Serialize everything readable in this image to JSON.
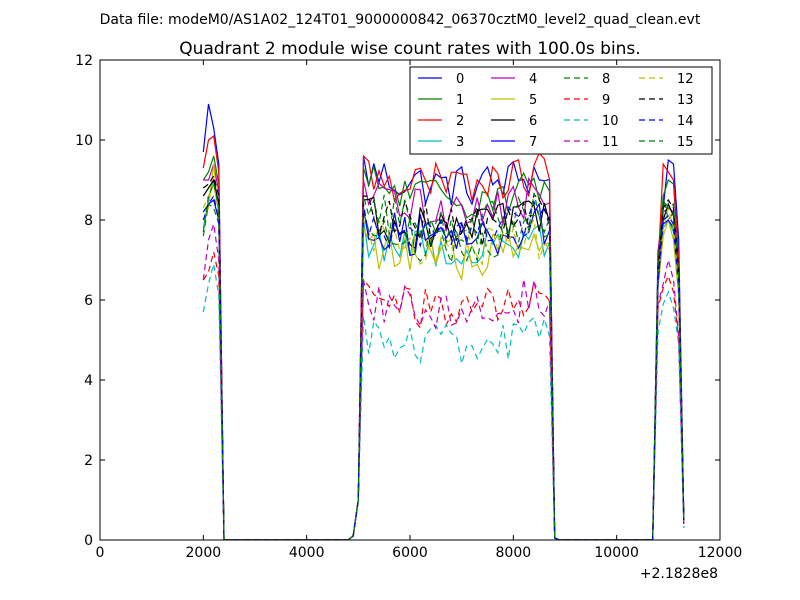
{
  "header": {
    "data_file": "Data file: modeM0/AS1A02_124T01_9000000842_06370cztM0_level2_quad_clean.evt"
  },
  "chart_data": {
    "type": "line",
    "title": "Quadrant 2 module wise count rates with 100.0s bins.",
    "xlabel": "",
    "ylabel": "",
    "xlim": [
      0,
      12000
    ],
    "ylim": [
      0,
      12
    ],
    "x_offset_label": "+2.1828e8",
    "x_ticks": [
      0,
      2000,
      4000,
      6000,
      8000,
      10000,
      12000
    ],
    "x_tick_labels": [
      "0",
      "2000",
      "4000",
      "6000",
      "8000",
      "10000",
      "12000"
    ],
    "y_ticks": [
      0,
      2,
      4,
      6,
      8,
      10,
      12
    ],
    "y_tick_labels": [
      "0",
      "2",
      "4",
      "6",
      "8",
      "10",
      "12"
    ],
    "grid": false,
    "legend_position": "top-right",
    "segments": [
      {
        "x_start": 2000,
        "n_points": 4,
        "pad_before": []
      },
      {
        "x_start": 2400,
        "n_points": 25,
        "pad_before": [],
        "zero": true
      },
      {
        "x_start": 4900,
        "n_points": 38,
        "pad_before": [
          0.1,
          1.0
        ]
      },
      {
        "x_start": 8700,
        "n_points": 20,
        "pad_before": [],
        "zero": true
      },
      {
        "x_start": 10700,
        "n_points": 6,
        "pad_before": [
          0.1
        ]
      }
    ],
    "series": [
      {
        "name": "0",
        "color": "#0000ff",
        "dash": "solid",
        "level": 9.2,
        "burst1": [
          9.7,
          10.9,
          10.3,
          9.4
        ],
        "burst3": [
          7.2,
          8.3,
          9.5,
          9.4,
          7.5,
          0.6
        ]
      },
      {
        "name": "1",
        "color": "#008000",
        "dash": "solid",
        "level": 8.9,
        "burst1": [
          9.0,
          9.2,
          9.6,
          8.9
        ],
        "burst3": [
          6.9,
          8.6,
          9.0,
          8.9,
          7.0,
          0.5
        ]
      },
      {
        "name": "2",
        "color": "#ff0000",
        "dash": "solid",
        "level": 9.2,
        "burst1": [
          9.3,
          10.0,
          10.1,
          9.2
        ],
        "burst3": [
          6.8,
          9.4,
          9.2,
          9.0,
          7.0,
          0.5
        ]
      },
      {
        "name": "3",
        "color": "#00bfbf",
        "dash": "solid",
        "level": 7.6,
        "burst1": [
          7.8,
          8.5,
          9.0,
          8.2
        ],
        "burst3": [
          6.5,
          7.8,
          8.0,
          7.7,
          6.2,
          0.4
        ]
      },
      {
        "name": "4",
        "color": "#bf00bf",
        "dash": "solid",
        "level": 8.6,
        "burst1": [
          9.0,
          9.0,
          9.4,
          8.7
        ],
        "burst3": [
          6.6,
          8.2,
          8.3,
          8.2,
          6.6,
          0.5
        ]
      },
      {
        "name": "5",
        "color": "#bfbf00",
        "dash": "solid",
        "level": 7.4,
        "burst1": [
          8.0,
          8.3,
          9.4,
          8.0
        ],
        "burst3": [
          6.3,
          7.6,
          8.0,
          7.5,
          6.1,
          0.4
        ]
      },
      {
        "name": "6",
        "color": "#000000",
        "dash": "solid",
        "level": 8.1,
        "burst1": [
          8.6,
          8.8,
          9.0,
          8.4
        ],
        "burst3": [
          6.5,
          8.0,
          8.4,
          8.1,
          6.6,
          0.5
        ]
      },
      {
        "name": "7",
        "color": "#0000ff",
        "dash": "solid",
        "level": 7.9,
        "burst1": [
          8.2,
          8.4,
          8.5,
          8.0
        ],
        "burst3": [
          6.4,
          7.9,
          8.0,
          7.8,
          6.3,
          0.5
        ]
      },
      {
        "name": "8",
        "color": "#008000",
        "dash": "dashed",
        "level": 7.8,
        "burst1": [
          7.6,
          8.4,
          8.3,
          7.9
        ],
        "burst3": [
          6.7,
          8.6,
          8.0,
          8.2,
          6.4,
          0.5
        ]
      },
      {
        "name": "9",
        "color": "#ff0000",
        "dash": "dashed",
        "level": 6.1,
        "burst1": [
          6.5,
          6.7,
          7.2,
          6.6
        ],
        "burst3": [
          5.8,
          6.3,
          6.6,
          6.2,
          5.0,
          0.4
        ]
      },
      {
        "name": "10",
        "color": "#00bfbf",
        "dash": "dashed",
        "level": 5.2,
        "burst1": [
          5.7,
          6.4,
          6.9,
          6.1
        ],
        "burst3": [
          5.2,
          5.9,
          6.2,
          5.8,
          4.9,
          0.3
        ]
      },
      {
        "name": "11",
        "color": "#bf00bf",
        "dash": "dashed",
        "level": 6.1,
        "burst1": [
          6.5,
          7.5,
          7.9,
          7.0
        ],
        "burst3": [
          5.9,
          6.4,
          7.0,
          6.5,
          5.1,
          0.4
        ]
      },
      {
        "name": "12",
        "color": "#bfbf00",
        "dash": "dashed",
        "level": 7.6,
        "burst1": [
          8.3,
          8.6,
          8.9,
          8.1
        ],
        "burst3": [
          6.6,
          7.8,
          8.3,
          7.8,
          6.3,
          0.5
        ]
      },
      {
        "name": "13",
        "color": "#000000",
        "dash": "dashed",
        "level": 8.2,
        "burst1": [
          8.8,
          8.9,
          9.1,
          8.6
        ],
        "burst3": [
          6.8,
          8.3,
          8.5,
          8.3,
          6.8,
          0.5
        ]
      },
      {
        "name": "14",
        "color": "#0000ff",
        "dash": "dashed",
        "level": 8.0,
        "burst1": [
          8.0,
          8.4,
          8.6,
          8.0
        ],
        "burst3": [
          6.6,
          8.0,
          8.1,
          7.9,
          6.4,
          0.5
        ]
      },
      {
        "name": "15",
        "color": "#008000",
        "dash": "dashed",
        "level": 8.2,
        "burst1": [
          7.7,
          8.6,
          8.9,
          8.3
        ],
        "burst3": [
          6.9,
          8.5,
          8.3,
          8.4,
          6.6,
          0.5
        ]
      }
    ]
  }
}
